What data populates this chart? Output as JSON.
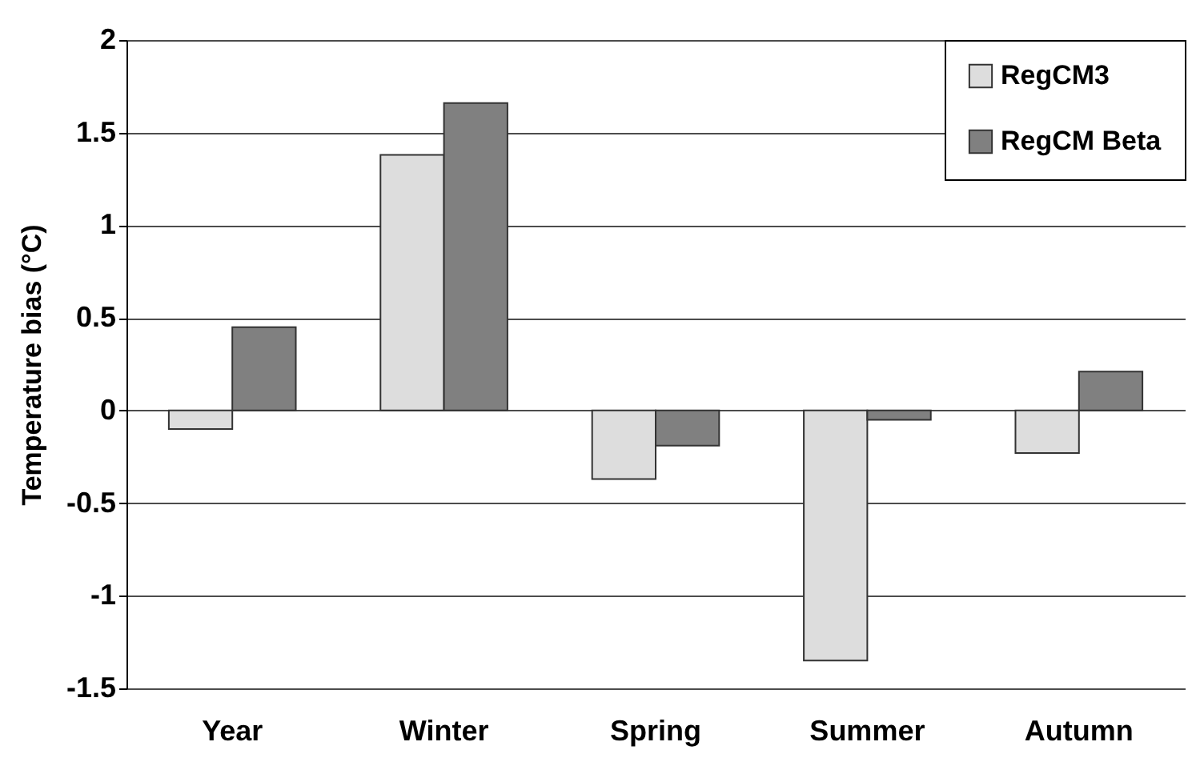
{
  "chart_data": {
    "type": "bar",
    "ylabel": "Temperature bias (°C)",
    "categories": [
      "Year",
      "Winter",
      "Spring",
      "Summer",
      "Autumn"
    ],
    "series": [
      {
        "name": "RegCM3",
        "color": "#dddddd",
        "values": [
          -0.1,
          1.38,
          -0.37,
          -1.35,
          -0.23
        ]
      },
      {
        "name": "RegCM Beta",
        "color": "#808080",
        "values": [
          0.45,
          1.66,
          -0.19,
          -0.05,
          0.21
        ]
      }
    ],
    "ylim": [
      -1.5,
      2
    ],
    "yticks": [
      -1.5,
      -1,
      -0.5,
      0,
      0.5,
      1,
      1.5,
      2
    ],
    "grid": "y",
    "legend": "top right"
  }
}
